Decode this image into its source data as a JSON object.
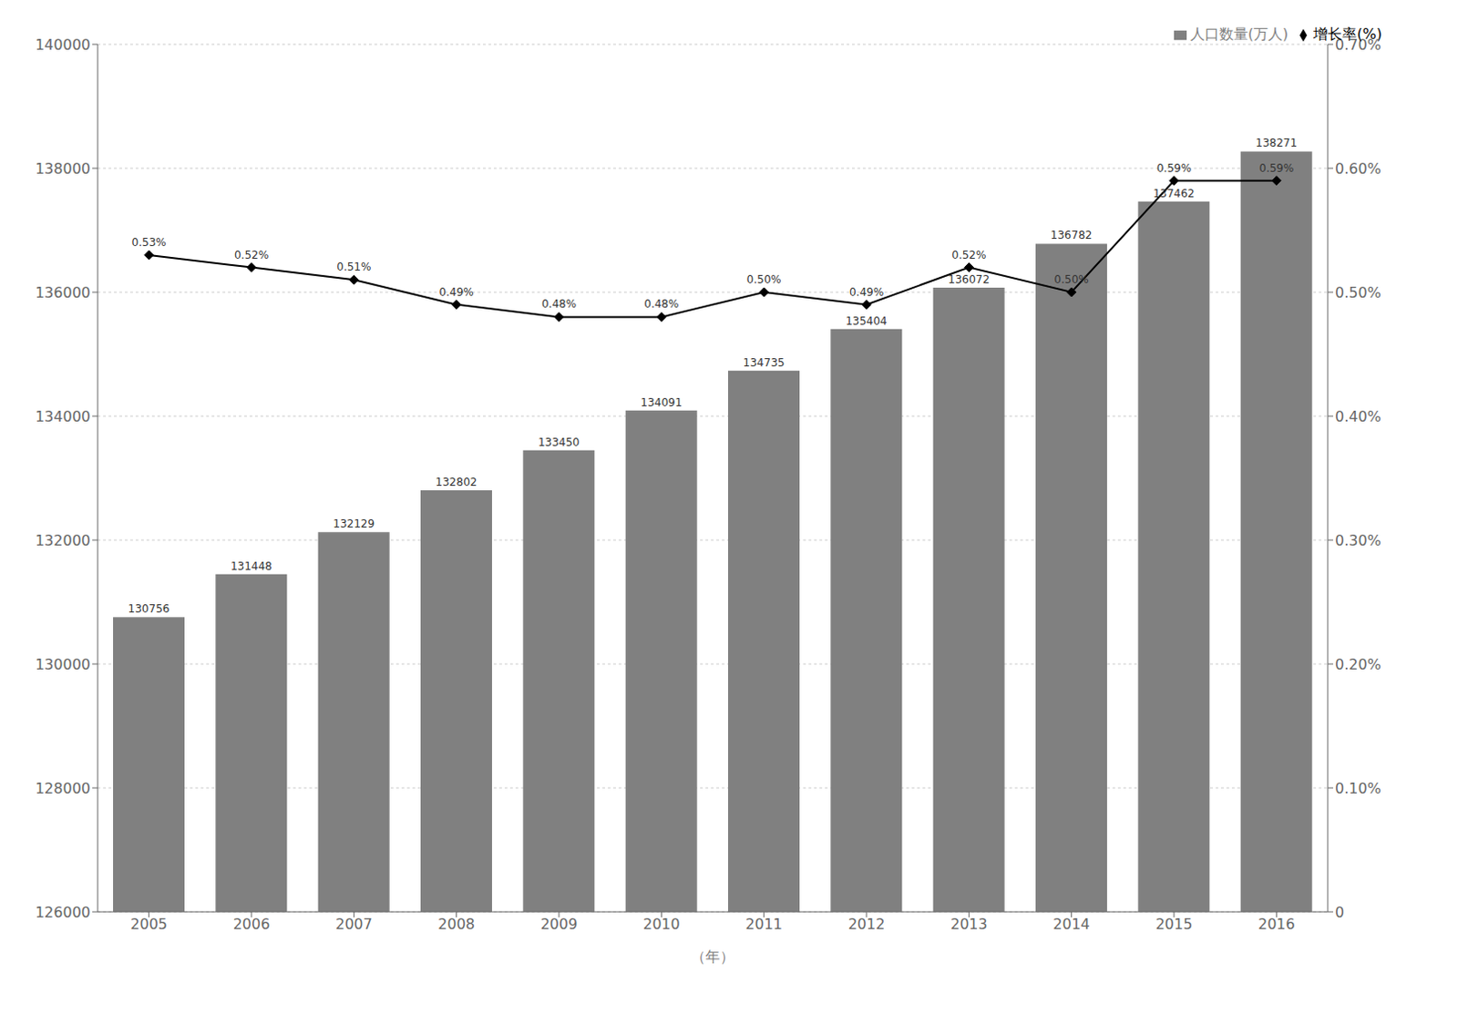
{
  "chart_data": {
    "type": "bar",
    "categories": [
      "2005",
      "2006",
      "2007",
      "2008",
      "2009",
      "2010",
      "2011",
      "2012",
      "2013",
      "2014",
      "2015",
      "2016"
    ],
    "xlabel": "（年）",
    "series": [
      {
        "name": "人口数量(万人)",
        "type": "bar",
        "color": "#808080",
        "values": [
          130756,
          131448,
          132129,
          132802,
          133450,
          134091,
          134735,
          135404,
          136072,
          136782,
          137462,
          138271
        ]
      },
      {
        "name": "增长率(%)",
        "type": "line",
        "axis": "y2",
        "color": "#000000",
        "marker": "diamond",
        "values": [
          0.53,
          0.52,
          0.51,
          0.49,
          0.48,
          0.48,
          0.5,
          0.49,
          0.52,
          0.5,
          0.59,
          0.59
        ],
        "value_labels": [
          "0.53%",
          "0.52%",
          "0.51%",
          "0.49%",
          "0.48%",
          "0.48%",
          "0.50%",
          "0.49%",
          "0.52%",
          "0.50%",
          "0.59%",
          "0.59%"
        ]
      }
    ],
    "ylim": [
      126000,
      140000
    ],
    "yticks": [
      126000,
      128000,
      130000,
      132000,
      134000,
      136000,
      138000,
      140000
    ],
    "y2lim": [
      0,
      0.7
    ],
    "y2ticks": [
      0,
      {
        "value": 0.1,
        "label": "0.10%"
      },
      {
        "value": 0.2,
        "label": "0.20%"
      },
      {
        "value": 0.3,
        "label": "0.30%"
      },
      {
        "value": 0.4,
        "label": "0.40%"
      },
      {
        "value": 0.5,
        "label": "0.50%"
      },
      {
        "value": 0.6,
        "label": "0.60%"
      },
      {
        "value": 0.7,
        "label": "0.70%"
      }
    ],
    "grid": true,
    "legend": "upper right",
    "data_labels": true
  }
}
